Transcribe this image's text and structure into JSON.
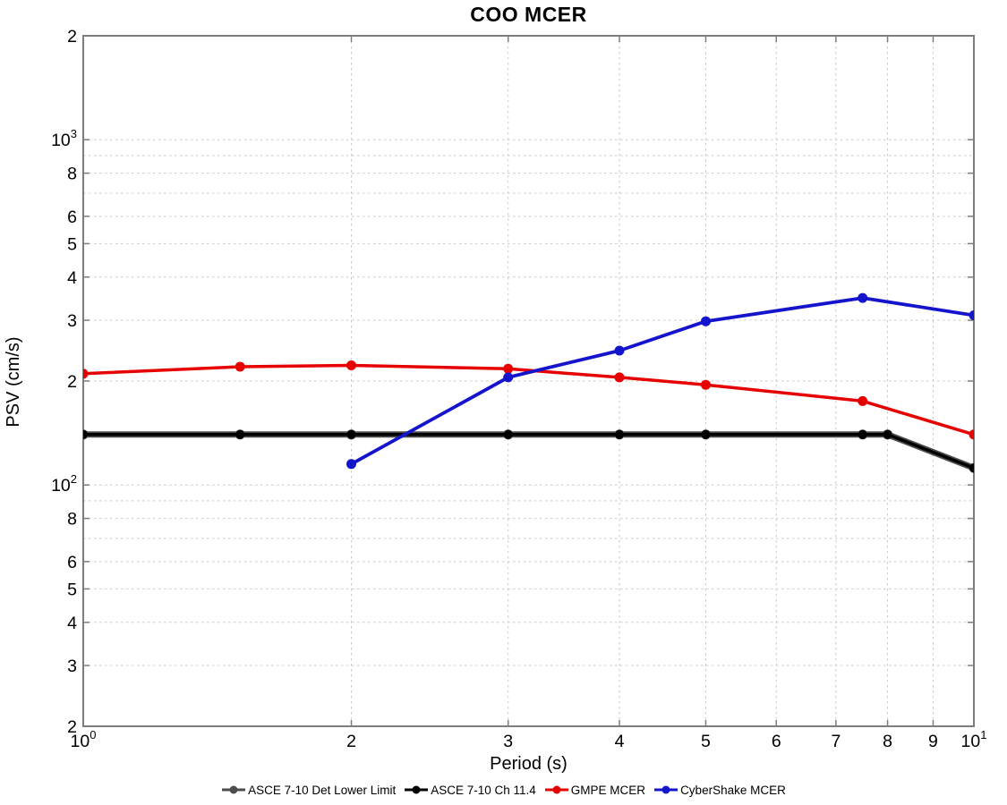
{
  "chart_data": {
    "type": "line",
    "title": "COO MCER",
    "xlabel": "Period (s)",
    "ylabel": "PSV (cm/s)",
    "x_scale": "log",
    "y_scale": "log",
    "xlim": [
      1,
      10
    ],
    "ylim": [
      20,
      2000
    ],
    "grid": "on",
    "grid_color": "#c9c9c9",
    "frame_color": "#7d7d7d",
    "x_ticks": [
      {
        "v": 1,
        "label": "10^0"
      },
      {
        "v": 2,
        "label": "2"
      },
      {
        "v": 3,
        "label": "3"
      },
      {
        "v": 4,
        "label": "4"
      },
      {
        "v": 5,
        "label": "5"
      },
      {
        "v": 6,
        "label": "6"
      },
      {
        "v": 7,
        "label": "7"
      },
      {
        "v": 8,
        "label": "8"
      },
      {
        "v": 9,
        "label": "9"
      },
      {
        "v": 10,
        "label": "10^1"
      }
    ],
    "y_ticks": [
      {
        "v": 2000,
        "label": "2"
      },
      {
        "v": 1000,
        "label": "10^3"
      },
      {
        "v": 800,
        "label": "8"
      },
      {
        "v": 600,
        "label": "6"
      },
      {
        "v": 500,
        "label": "5"
      },
      {
        "v": 400,
        "label": "4"
      },
      {
        "v": 300,
        "label": "3"
      },
      {
        "v": 200,
        "label": "2"
      },
      {
        "v": 100,
        "label": "10^2"
      },
      {
        "v": 80,
        "label": "8"
      },
      {
        "v": 60,
        "label": "6"
      },
      {
        "v": 50,
        "label": "5"
      },
      {
        "v": 40,
        "label": "4"
      },
      {
        "v": 30,
        "label": "3"
      },
      {
        "v": 20,
        "label": "2"
      }
    ],
    "grid_x": [
      2,
      3,
      4,
      5,
      6,
      7,
      8,
      9
    ],
    "grid_y": [
      30,
      40,
      50,
      60,
      70,
      80,
      90,
      100,
      200,
      300,
      400,
      500,
      600,
      700,
      800,
      900,
      1000
    ],
    "series": [
      {
        "name": "ASCE 7-10 Det Lower Limit",
        "color": "#4d4d4d",
        "line_width": 7,
        "marker": "circle",
        "marker_radius": 5.5,
        "x": [
          1,
          1.5,
          2,
          3,
          4,
          5,
          7.5,
          8,
          10
        ],
        "y": [
          140,
          140,
          140,
          140,
          140,
          140,
          140,
          140,
          112
        ]
      },
      {
        "name": "ASCE 7-10 Ch 11.4",
        "color": "#000000",
        "line_width": 3.5,
        "marker": "circle",
        "marker_radius": 5,
        "x": [
          1,
          1.5,
          2,
          3,
          4,
          5,
          7.5,
          8,
          10
        ],
        "y": [
          140,
          140,
          140,
          140,
          140,
          140,
          140,
          140,
          112
        ]
      },
      {
        "name": "GMPE MCER",
        "color": "#e60000",
        "line_width": 3.5,
        "marker": "circle",
        "marker_radius": 5.5,
        "x": [
          1,
          1.5,
          2,
          3,
          4,
          5,
          7.5,
          10
        ],
        "y": [
          210,
          220,
          222,
          217,
          205,
          195,
          175,
          140
        ]
      },
      {
        "name": "CyberShake MCER",
        "color": "#1414cc",
        "line_width": 3.8,
        "marker": "circle",
        "marker_radius": 5.5,
        "x": [
          2,
          3,
          4,
          5,
          7.5,
          10
        ],
        "y": [
          115,
          205,
          245,
          298,
          348,
          310
        ]
      }
    ],
    "legend": {
      "position": "bottom-center",
      "labels": [
        "ASCE 7-10 Det Lower Limit",
        "ASCE 7-10 Ch 11.4",
        "GMPE MCER",
        "CyberShake MCER"
      ]
    }
  }
}
